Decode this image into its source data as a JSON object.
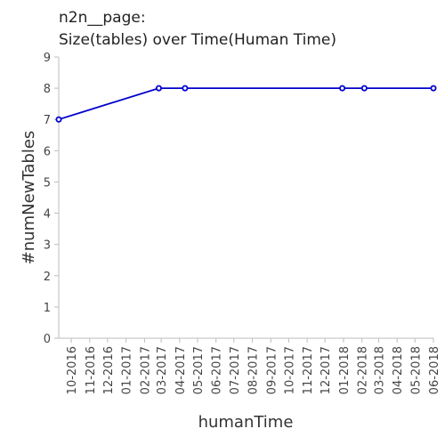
{
  "chart_data": {
    "type": "line",
    "title": "n2n__page:",
    "subtitle": "Size(tables) over Time(Human Time)",
    "xlabel": "humanTime",
    "ylabel": "#numNewTables",
    "ylim": [
      0,
      9
    ],
    "yticks": [
      "0",
      "1",
      "2",
      "3",
      "4",
      "5",
      "6",
      "7",
      "8",
      "9"
    ],
    "xlim": [
      "2016-09-10",
      "2018-06-01"
    ],
    "xticks": [
      {
        "date": "2016-10-01",
        "label": "10-2016"
      },
      {
        "date": "2016-11-01",
        "label": "11-2016"
      },
      {
        "date": "2016-12-01",
        "label": "12-2016"
      },
      {
        "date": "2017-01-01",
        "label": "01-2017"
      },
      {
        "date": "2017-02-01",
        "label": "02-2017"
      },
      {
        "date": "2017-03-01",
        "label": "03-2017"
      },
      {
        "date": "2017-04-01",
        "label": "04-2017"
      },
      {
        "date": "2017-05-01",
        "label": "05-2017"
      },
      {
        "date": "2017-06-01",
        "label": "06-2017"
      },
      {
        "date": "2017-07-01",
        "label": "07-2017"
      },
      {
        "date": "2017-08-01",
        "label": "08-2017"
      },
      {
        "date": "2017-09-01",
        "label": "09-2017"
      },
      {
        "date": "2017-10-01",
        "label": "10-2017"
      },
      {
        "date": "2017-11-01",
        "label": "11-2017"
      },
      {
        "date": "2017-12-01",
        "label": "12-2017"
      },
      {
        "date": "2018-01-01",
        "label": "01-2018"
      },
      {
        "date": "2018-02-01",
        "label": "02-2018"
      },
      {
        "date": "2018-03-01",
        "label": "03-2018"
      },
      {
        "date": "2018-04-01",
        "label": "04-2018"
      },
      {
        "date": "2018-05-01",
        "label": "05-2018"
      },
      {
        "date": "2018-06-01",
        "label": "06-2018"
      }
    ],
    "series": [
      {
        "color": "#0000cc",
        "points": [
          {
            "x": "2016-09-10",
            "y": 7
          },
          {
            "x": "2017-02-25",
            "y": 8
          },
          {
            "x": "2017-04-10",
            "y": 8
          },
          {
            "x": "2017-12-30",
            "y": 8
          },
          {
            "x": "2018-02-05",
            "y": 8
          },
          {
            "x": "2018-06-01",
            "y": 8
          }
        ]
      }
    ],
    "grid": false,
    "legend": "none"
  }
}
